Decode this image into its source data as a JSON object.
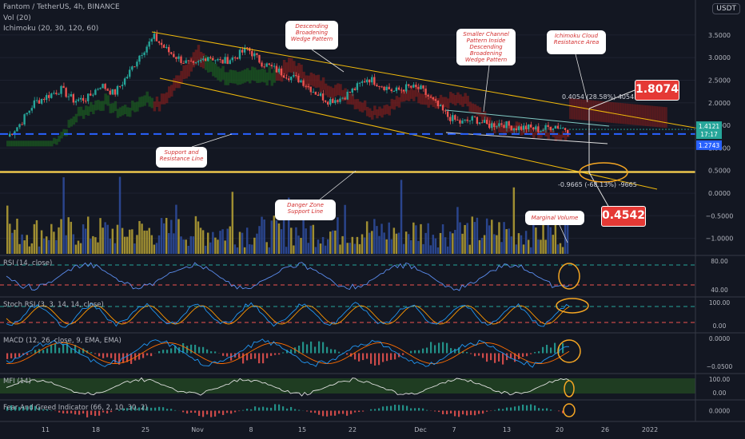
{
  "header": {
    "symbol_line": "Fantom / TetherUS, 4h, BINANCE",
    "vol_line": "Vol (20)",
    "ichimoku_line": "Ichimoku (20, 30, 120, 60)",
    "currency_badge": "USDT"
  },
  "annotations": {
    "descending_wedge": "Descending Broadening Wedge Pattern",
    "smaller_channel": "Smaller Channel Pattern Inside Descending Broadening Wedge Pattern",
    "ichimoku_resistance": "Ichimoku Cloud Resistance Area",
    "support_resistance": "Support and Resistance Line",
    "danger_zone": "Danger Zone Support Line",
    "marginal_volume": "Marginal Volume",
    "target_up": "1.8074",
    "target_down": "0.4542",
    "measure_up": "0.4054 (28.58%) 4054",
    "measure_down": "-0.9665 (-68.13%) -9665"
  },
  "price_axis": {
    "ticks": [
      "3.5000",
      "3.0000",
      "2.5000",
      "2.0000",
      "1.5000",
      "1.0000",
      "0.5000",
      "0.0000",
      "−0.5000",
      "−1.0000"
    ],
    "last_price": "1.4121",
    "countdown": "17:17",
    "support_price": "1.2743"
  },
  "time_axis": [
    "11",
    "18",
    "25",
    "Nov",
    "8",
    "15",
    "22",
    "Dec",
    "7",
    "13",
    "20",
    "26",
    "2022"
  ],
  "indicators": {
    "rsi": {
      "label": "RSI (14, close)",
      "ticks": [
        "80.00",
        "40.00"
      ]
    },
    "stoch": {
      "label": "Stoch RSI (3, 3, 14, 14, close)",
      "ticks": [
        "100.00",
        "0.00"
      ]
    },
    "macd": {
      "label": "MACD (12, 26, close, 9, EMA, EMA)",
      "ticks": [
        "0.0000",
        "−0.0500"
      ]
    },
    "mfi": {
      "label": "MFI (14)",
      "ticks": [
        "100.00",
        "0.00"
      ]
    },
    "fear_greed": {
      "label": "Fear And Greed Indicator (66, 2, 10, 30, 2)",
      "ticks": [
        "0.0000"
      ]
    }
  },
  "colors": {
    "background": "#131722",
    "up_candle": "#26a69a",
    "down_candle": "#ef5350",
    "wedge_line": "#f0b90b",
    "support_line": "#2962ff",
    "danger_line": "#ffd54f",
    "highlight_circle": "#f5a623"
  },
  "chart_data": {
    "type": "candlestick",
    "title": "Fantom / TetherUS, 4h, BINANCE",
    "ylim": [
      -1.2,
      3.75
    ],
    "x_ticks": [
      "11",
      "18",
      "25",
      "Nov",
      "8",
      "15",
      "22",
      "Dec",
      "7",
      "13",
      "20",
      "26",
      "2022"
    ],
    "price_path": [
      1.25,
      1.55,
      2.0,
      2.15,
      2.3,
      2.05,
      2.1,
      2.4,
      2.2,
      2.6,
      3.1,
      3.45,
      3.15,
      2.95,
      2.8,
      3.05,
      2.9,
      3.0,
      3.2,
      2.9,
      2.75,
      2.6,
      2.5,
      2.25,
      2.05,
      2.1,
      2.3,
      2.55,
      2.4,
      2.25,
      2.35,
      2.3,
      2.0,
      1.7,
      1.55,
      1.65,
      1.5,
      1.55,
      1.45,
      1.45,
      1.4,
      1.5,
      1.41
    ],
    "levels": {
      "support": 1.2743,
      "danger": 0.45,
      "last": 1.4121,
      "target_up": 1.8074,
      "target_down": 0.4542
    }
  }
}
